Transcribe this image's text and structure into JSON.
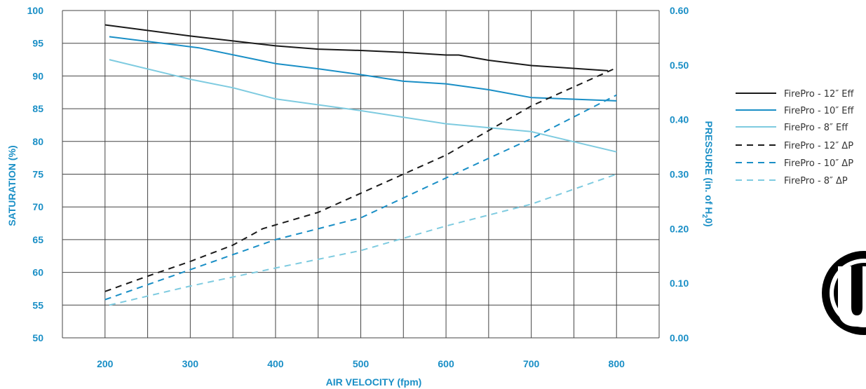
{
  "chart_data": {
    "type": "line",
    "xlabel": "AIR VELOCITY (fpm)",
    "ylabel_left": "SATURATION (%)",
    "ylabel_right_parts": [
      "PRESSURE (in. of H",
      "2",
      "0)"
    ],
    "x_ticks": [
      200,
      300,
      400,
      500,
      600,
      700,
      800
    ],
    "x_range": [
      150,
      850
    ],
    "y_left_ticks": [
      50,
      55,
      60,
      65,
      70,
      75,
      80,
      85,
      90,
      95,
      100
    ],
    "y_left_range": [
      50,
      100
    ],
    "y_right_ticks": [
      "0.00",
      "0.10",
      "0.20",
      "0.30",
      "0.40",
      "0.50",
      "0.60"
    ],
    "y_right_range": [
      0,
      0.6
    ],
    "grid": true,
    "legend_position": "right",
    "series": [
      {
        "name": "FirePro - 12″ Eff",
        "axis": "left",
        "color": "#1a1a1a",
        "dashed": false,
        "points": [
          [
            200,
            97.8
          ],
          [
            300,
            96.1
          ],
          [
            400,
            94.6
          ],
          [
            450,
            94.1
          ],
          [
            500,
            93.9
          ],
          [
            550,
            93.6
          ],
          [
            600,
            93.2
          ],
          [
            615,
            93.2
          ],
          [
            650,
            92.4
          ],
          [
            700,
            91.6
          ],
          [
            790,
            90.8
          ]
        ]
      },
      {
        "name": "FirePro - 10″ Eff",
        "axis": "left",
        "color": "#1a8fc6",
        "dashed": false,
        "points": [
          [
            205,
            96.0
          ],
          [
            310,
            94.3
          ],
          [
            400,
            91.9
          ],
          [
            450,
            91.1
          ],
          [
            500,
            90.2
          ],
          [
            550,
            89.2
          ],
          [
            600,
            88.8
          ],
          [
            650,
            87.9
          ],
          [
            700,
            86.7
          ],
          [
            800,
            86.2
          ]
        ]
      },
      {
        "name": "FirePro - 8″ Eff",
        "axis": "left",
        "color": "#7ecbe0",
        "dashed": false,
        "points": [
          [
            205,
            92.5
          ],
          [
            300,
            89.5
          ],
          [
            350,
            88.2
          ],
          [
            400,
            86.5
          ],
          [
            500,
            84.7
          ],
          [
            600,
            82.7
          ],
          [
            700,
            81.5
          ],
          [
            800,
            78.4
          ]
        ]
      },
      {
        "name": "FirePro - 12″ ΔP",
        "axis": "right",
        "color": "#1a1a1a",
        "dashed": true,
        "points": [
          [
            200,
            0.085
          ],
          [
            250,
            0.113
          ],
          [
            300,
            0.14
          ],
          [
            350,
            0.17
          ],
          [
            385,
            0.2
          ],
          [
            450,
            0.23
          ],
          [
            500,
            0.265
          ],
          [
            600,
            0.335
          ],
          [
            700,
            0.425
          ],
          [
            800,
            0.495
          ]
        ]
      },
      {
        "name": "FirePro - 10″ ΔP",
        "axis": "right",
        "color": "#1a8fc6",
        "dashed": true,
        "points": [
          [
            200,
            0.07
          ],
          [
            300,
            0.125
          ],
          [
            400,
            0.18
          ],
          [
            500,
            0.22
          ],
          [
            600,
            0.293
          ],
          [
            700,
            0.365
          ],
          [
            800,
            0.445
          ]
        ]
      },
      {
        "name": "FirePro - 8″ ΔP",
        "axis": "right",
        "color": "#7ecbe0",
        "dashed": true,
        "points": [
          [
            205,
            0.06
          ],
          [
            300,
            0.095
          ],
          [
            400,
            0.128
          ],
          [
            500,
            0.16
          ],
          [
            600,
            0.205
          ],
          [
            700,
            0.245
          ],
          [
            800,
            0.3
          ]
        ]
      }
    ]
  },
  "logo": {
    "name": "ul-logo-icon",
    "letters": "UL",
    "mark": "®"
  }
}
